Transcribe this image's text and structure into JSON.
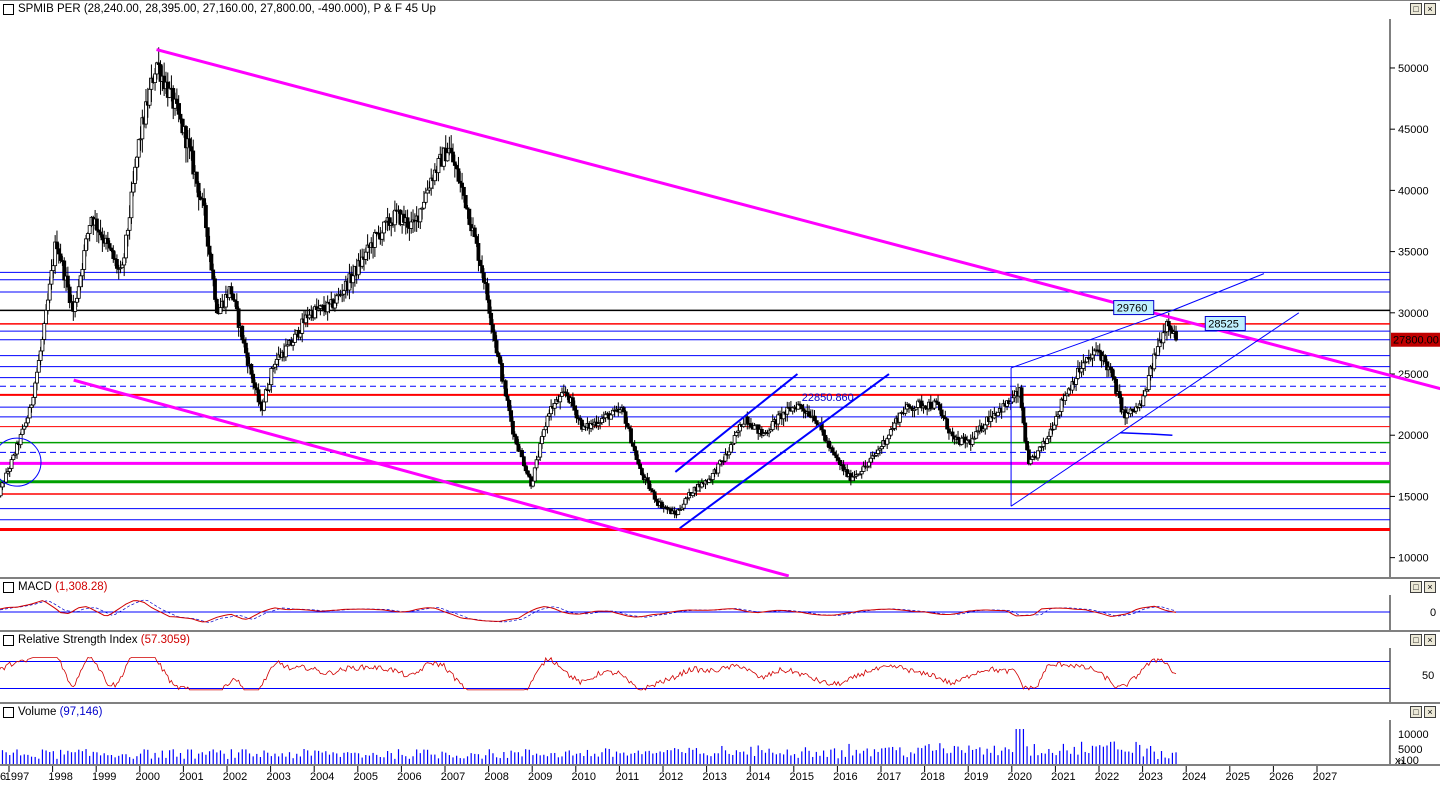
{
  "panes": {
    "price": {
      "title": "SPMIB PER (28,240.00, 28,395.00, 27,160.00, 27,800.00, -490.000), P & F 45 Up"
    },
    "macd": {
      "title": "MACD",
      "value": "(1,308.28)"
    },
    "rsi": {
      "title": "Relative Strength Index",
      "value": "(57.3059)"
    },
    "volume": {
      "title": "Volume",
      "value": "(97,146)"
    }
  },
  "window_buttons": {
    "restore": "□",
    "close": "×"
  },
  "chart_data": {
    "type": "candlestick",
    "x_labels": [
      "1997",
      "1998",
      "1999",
      "2000",
      "2001",
      "2002",
      "2003",
      "2004",
      "2005",
      "2006",
      "2007",
      "2008",
      "2009",
      "2010",
      "2011",
      "2012",
      "2013",
      "2014",
      "2015",
      "2016",
      "2017",
      "2018",
      "2019",
      "2020",
      "2021",
      "2022",
      "2023",
      "2024",
      "2025",
      "2026",
      "2027"
    ],
    "x_first_label_partial": "6",
    "price_axis": {
      "ticks": [
        10000,
        15000,
        20000,
        25000,
        30000,
        35000,
        40000,
        45000,
        50000
      ],
      "ylim": [
        8500,
        54000
      ]
    },
    "price_path": [
      [
        1996.5,
        14500
      ],
      [
        1996.9,
        18000
      ],
      [
        1997.3,
        22000
      ],
      [
        1997.6,
        28000
      ],
      [
        1997.9,
        36000
      ],
      [
        1998.3,
        30000
      ],
      [
        1998.7,
        38000
      ],
      [
        1999.0,
        36000
      ],
      [
        1999.4,
        33000
      ],
      [
        1999.8,
        44000
      ],
      [
        2000.2,
        50500
      ],
      [
        2000.6,
        47000
      ],
      [
        2000.9,
        44000
      ],
      [
        2001.3,
        38000
      ],
      [
        2001.6,
        30000
      ],
      [
        2001.9,
        32000
      ],
      [
        2002.3,
        26000
      ],
      [
        2002.6,
        22000
      ],
      [
        2002.9,
        26000
      ],
      [
        2003.3,
        27500
      ],
      [
        2003.7,
        30000
      ],
      [
        2004.2,
        30500
      ],
      [
        2004.7,
        33000
      ],
      [
        2005.2,
        36000
      ],
      [
        2005.7,
        38000
      ],
      [
        2006.1,
        37000
      ],
      [
        2006.5,
        41000
      ],
      [
        2006.9,
        43500
      ],
      [
        2007.3,
        39000
      ],
      [
        2007.7,
        33000
      ],
      [
        2008.0,
        27000
      ],
      [
        2008.4,
        20000
      ],
      [
        2008.8,
        16000
      ],
      [
        2009.2,
        22000
      ],
      [
        2009.6,
        23500
      ],
      [
        2010.0,
        20500
      ],
      [
        2010.5,
        21500
      ],
      [
        2010.9,
        22000
      ],
      [
        2011.3,
        17000
      ],
      [
        2011.7,
        14500
      ],
      [
        2012.1,
        13500
      ],
      [
        2012.5,
        15500
      ],
      [
        2012.9,
        16500
      ],
      [
        2013.3,
        18500
      ],
      [
        2013.7,
        21500
      ],
      [
        2014.1,
        20000
      ],
      [
        2014.5,
        21500
      ],
      [
        2014.9,
        22500
      ],
      [
        2015.3,
        21500
      ],
      [
        2015.7,
        18500
      ],
      [
        2016.1,
        16500
      ],
      [
        2016.5,
        17500
      ],
      [
        2016.9,
        19500
      ],
      [
        2017.3,
        22000
      ],
      [
        2017.7,
        22500
      ],
      [
        2018.1,
        22500
      ],
      [
        2018.5,
        19500
      ],
      [
        2018.9,
        19500
      ],
      [
        2019.3,
        21500
      ],
      [
        2019.7,
        22500
      ],
      [
        2020.0,
        23500
      ],
      [
        2020.2,
        17500
      ],
      [
        2020.6,
        19500
      ],
      [
        2021.0,
        23000
      ],
      [
        2021.4,
        25500
      ],
      [
        2021.8,
        27000
      ],
      [
        2022.1,
        25000
      ],
      [
        2022.4,
        21500
      ],
      [
        2022.8,
        22500
      ],
      [
        2023.1,
        26500
      ],
      [
        2023.4,
        29500
      ],
      [
        2023.6,
        27800
      ]
    ],
    "horizontal_levels": [
      {
        "y": 33300,
        "color": "#0000ff",
        "width": 1
      },
      {
        "y": 32700,
        "color": "#0000ff",
        "width": 1
      },
      {
        "y": 31700,
        "color": "#0000ff",
        "width": 1
      },
      {
        "y": 30200,
        "color": "#000000",
        "width": 1.5
      },
      {
        "y": 29100,
        "color": "#ff0000",
        "width": 1.5
      },
      {
        "y": 28500,
        "color": "#0000ff",
        "width": 1
      },
      {
        "y": 27800,
        "color": "#0000ff",
        "width": 1
      },
      {
        "y": 26500,
        "color": "#0000ff",
        "width": 1
      },
      {
        "y": 25600,
        "color": "#0000ff",
        "width": 1
      },
      {
        "y": 24700,
        "color": "#0000ff",
        "width": 1
      },
      {
        "y": 24000,
        "color": "#0000ff",
        "width": 1,
        "dash": true
      },
      {
        "y": 23300,
        "color": "#ff0000",
        "width": 2
      },
      {
        "y": 22300,
        "color": "#0000ff",
        "width": 1
      },
      {
        "y": 21500,
        "color": "#0000ff",
        "width": 1
      },
      {
        "y": 20700,
        "color": "#ff0000",
        "width": 1
      },
      {
        "y": 19400,
        "color": "#00a000",
        "width": 1.5
      },
      {
        "y": 18600,
        "color": "#0000ff",
        "width": 1,
        "dash": true
      },
      {
        "y": 17700,
        "color": "#ff00ff",
        "width": 3
      },
      {
        "y": 16200,
        "color": "#00a000",
        "width": 3
      },
      {
        "y": 15200,
        "color": "#ff0000",
        "width": 1.5
      },
      {
        "y": 14000,
        "color": "#0000ff",
        "width": 1
      },
      {
        "y": 13100,
        "color": "#0000ff",
        "width": 1
      },
      {
        "y": 12300,
        "color": "#ff0000",
        "width": 3
      }
    ],
    "trend_lines": [
      {
        "x1": 2000.2,
        "y1": 51500,
        "x2": 2030.5,
        "y2": 23000,
        "color": "#ff00ff",
        "width": 3
      },
      {
        "x1": 1998.3,
        "y1": 24500,
        "x2": 2014.7,
        "y2": 8500,
        "color": "#ff00ff",
        "width": 3
      },
      {
        "x1": 2012.1,
        "y1": 17000,
        "x2": 2014.9,
        "y2": 25000,
        "color": "#0000ff",
        "width": 2
      },
      {
        "x1": 2012.2,
        "y1": 12400,
        "x2": 2017.0,
        "y2": 25000,
        "color": "#0000ff",
        "width": 2
      },
      {
        "x1": 2019.8,
        "y1": 25500,
        "x2": 2023.5,
        "y2": 30200,
        "color": "#0000ff",
        "width": 1
      },
      {
        "x1": 2023.5,
        "y1": 30200,
        "x2": 2025.6,
        "y2": 33200,
        "color": "#0000ff",
        "width": 1
      },
      {
        "x1": 2019.8,
        "y1": 14200,
        "x2": 2026.4,
        "y2": 30000,
        "color": "#0000ff",
        "width": 1
      },
      {
        "x1": 2019.8,
        "y1": 25500,
        "x2": 2019.8,
        "y2": 14200,
        "color": "#0000ff",
        "width": 1
      },
      {
        "x1": 2022.3,
        "y1": 20200,
        "x2": 2023.0,
        "y2": 20100,
        "color": "#0000ff",
        "width": 1.5
      },
      {
        "x1": 2023.0,
        "y1": 20100,
        "x2": 2023.5,
        "y2": 20000,
        "color": "#0000ff",
        "width": 1.5
      }
    ],
    "annotations": [
      {
        "text": "29760",
        "x": 2022.2,
        "y": 30100,
        "type": "box"
      },
      {
        "text": "28525",
        "x": 2024.3,
        "y": 28800,
        "type": "box"
      },
      {
        "text": "22850.860",
        "x": 2015.0,
        "y": 22800,
        "type": "text"
      }
    ],
    "last_price_label": "27800.00",
    "circle_marker": {
      "x": 1997.0,
      "y": 17800
    },
    "macd": {
      "axis_ticks": [
        0
      ]
    },
    "rsi": {
      "axis_ticks": [
        50
      ],
      "upper": 70,
      "lower": 30
    },
    "volume": {
      "axis_ticks": [
        "10000",
        "5000",
        "0"
      ],
      "scale_note": "x100"
    }
  }
}
